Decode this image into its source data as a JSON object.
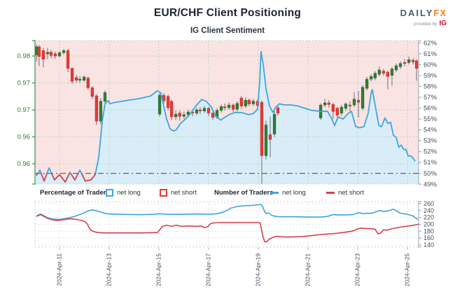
{
  "header": {
    "title": "EUR/CHF Client Positioning",
    "subtitle": "IG Client Sentiment"
  },
  "brand": {
    "daily": "DAILY",
    "fx": "FX",
    "provided_by": "provided by",
    "ig": "IG"
  },
  "legend": {
    "pct_group": "Percentage of Traders",
    "num_group": "Number of Traders",
    "pct_net_long": "net long",
    "pct_net_short": "net short",
    "num_net_long": "net long",
    "num_net_short": "net short"
  },
  "colors": {
    "candle_up": "#2e7d32",
    "candle_up_stroke": "#256428",
    "candle_down": "#e53935",
    "candle_down_stroke": "#c62828",
    "wick": "#6b7077",
    "sentiment_blue": "#3fa5de",
    "sentiment_red": "#d24b55",
    "area_above": "#f9e3e3",
    "area_below": "#d9edf8",
    "grid_green": "#aed3ae",
    "axis_green": "#3f9142",
    "label_green": "#2e7d32",
    "axis_gray": "#a8b0b8",
    "label_gray": "#454f5b",
    "grid_gray": "#d9dde2",
    "border_gray": "#c9ced4",
    "midline": "#5c6168",
    "num_long_line": "#3fa5de",
    "num_short_line": "#d6404a"
  },
  "chart_data": {
    "type": "candlestick+line",
    "title": "EUR/CHF Client Positioning",
    "subtitle": "IG Client Sentiment",
    "x_axis": {
      "unit": "days since 2024-Apr-10 00:00",
      "ticks": [
        {
          "d": 1,
          "label": "2024-Apr-11"
        },
        {
          "d": 3,
          "label": "2024-Apr-13"
        },
        {
          "d": 5,
          "label": "2024-Apr-15"
        },
        {
          "d": 7,
          "label": "2024-Apr-17"
        },
        {
          "d": 9,
          "label": "2024-Apr-19"
        },
        {
          "d": 11,
          "label": "2024-Apr-21"
        },
        {
          "d": 13,
          "label": "2024-Apr-23"
        },
        {
          "d": 15,
          "label": "2024-Apr-25"
        }
      ]
    },
    "price_axis": {
      "labels": [
        {
          "value": 0.98,
          "text": "0.98"
        },
        {
          "value": 0.975,
          "text": "0.97"
        },
        {
          "value": 0.97,
          "text": "0.97"
        },
        {
          "value": 0.965,
          "text": "0.96"
        },
        {
          "value": 0.96,
          "text": "0.96"
        }
      ]
    },
    "pct_axis": {
      "min": 49,
      "max": 62,
      "step": 1,
      "suffix": "%",
      "midline": 50
    },
    "count_axis": {
      "min": 140,
      "max": 260,
      "step": 20
    },
    "candles": [
      [
        0.08,
        0.9802,
        0.9821,
        0.979,
        0.9817
      ],
      [
        0.18,
        0.9817,
        0.982,
        0.9781,
        0.9799
      ],
      [
        0.35,
        0.981,
        0.9815,
        0.9779,
        0.9794
      ],
      [
        0.52,
        0.9804,
        0.9815,
        0.9794,
        0.9807
      ],
      [
        0.66,
        0.9807,
        0.9811,
        0.9796,
        0.9801
      ],
      [
        0.83,
        0.9804,
        0.9808,
        0.9795,
        0.98
      ],
      [
        1.0,
        0.98,
        0.9809,
        0.9797,
        0.9806
      ],
      [
        1.17,
        0.9806,
        0.9813,
        0.9803,
        0.981
      ],
      [
        1.34,
        0.981,
        0.9813,
        0.977,
        0.9777
      ],
      [
        1.51,
        0.9777,
        0.9779,
        0.9748,
        0.9753
      ],
      [
        1.68,
        0.976,
        0.9765,
        0.975,
        0.9755
      ],
      [
        1.82,
        0.9755,
        0.9763,
        0.975,
        0.9757
      ],
      [
        1.99,
        0.9755,
        0.9764,
        0.9752,
        0.9761
      ],
      [
        2.15,
        0.9759,
        0.9762,
        0.9738,
        0.9741
      ],
      [
        2.32,
        0.9741,
        0.9744,
        0.972,
        0.9725
      ],
      [
        2.49,
        0.9726,
        0.9729,
        0.9672,
        0.9679
      ],
      [
        2.66,
        0.9679,
        0.9722,
        0.9673,
        0.9716
      ],
      [
        2.83,
        0.9716,
        0.9736,
        0.9706,
        0.9732
      ],
      [
        5.03,
        0.9692,
        0.9731,
        0.9688,
        0.9727
      ],
      [
        5.2,
        0.9727,
        0.9731,
        0.9712,
        0.9717
      ],
      [
        5.37,
        0.9725,
        0.9728,
        0.9699,
        0.9704
      ],
      [
        5.51,
        0.9716,
        0.9719,
        0.9681,
        0.9687
      ],
      [
        5.68,
        0.9687,
        0.9699,
        0.9681,
        0.9692
      ],
      [
        5.84,
        0.9694,
        0.9699,
        0.968,
        0.9688
      ],
      [
        6.01,
        0.9688,
        0.9697,
        0.9683,
        0.9691
      ],
      [
        6.18,
        0.9691,
        0.97,
        0.9686,
        0.9696
      ],
      [
        6.35,
        0.9696,
        0.9701,
        0.9688,
        0.9694
      ],
      [
        6.52,
        0.9694,
        0.9704,
        0.969,
        0.97
      ],
      [
        6.66,
        0.97,
        0.9705,
        0.9692,
        0.9698
      ],
      [
        6.83,
        0.9698,
        0.9707,
        0.9694,
        0.9703
      ],
      [
        7.0,
        0.9703,
        0.9706,
        0.9689,
        0.9694
      ],
      [
        7.17,
        0.9694,
        0.9697,
        0.9681,
        0.9686
      ],
      [
        7.34,
        0.9686,
        0.9703,
        0.9683,
        0.9699
      ],
      [
        7.51,
        0.9699,
        0.971,
        0.9695,
        0.9706
      ],
      [
        7.65,
        0.9706,
        0.9712,
        0.9699,
        0.9704
      ],
      [
        7.82,
        0.9704,
        0.9714,
        0.97,
        0.9709
      ],
      [
        7.99,
        0.9709,
        0.9712,
        0.9696,
        0.9701
      ],
      [
        8.15,
        0.9701,
        0.9716,
        0.9697,
        0.9712
      ],
      [
        8.32,
        0.9722,
        0.9726,
        0.9702,
        0.9707
      ],
      [
        8.49,
        0.9707,
        0.9723,
        0.9703,
        0.9718
      ],
      [
        8.63,
        0.9718,
        0.9721,
        0.9706,
        0.9711
      ],
      [
        8.8,
        0.9711,
        0.972,
        0.9707,
        0.9716
      ],
      [
        8.97,
        0.9716,
        0.9719,
        0.9703,
        0.9708
      ],
      [
        9.14,
        0.9714,
        0.9717,
        0.9563,
        0.9615
      ],
      [
        9.31,
        0.9615,
        0.968,
        0.9608,
        0.9672
      ],
      [
        9.48,
        0.9654,
        0.9688,
        0.9612,
        0.9645
      ],
      [
        9.65,
        0.9655,
        0.9698,
        0.965,
        0.9692
      ],
      [
        9.79,
        0.9704,
        0.9708,
        0.9689,
        0.9694
      ],
      [
        11.51,
        0.9685,
        0.9712,
        0.9681,
        0.9709
      ],
      [
        11.68,
        0.9709,
        0.972,
        0.9705,
        0.9713
      ],
      [
        11.84,
        0.9713,
        0.9718,
        0.9704,
        0.971
      ],
      [
        12.01,
        0.971,
        0.9713,
        0.9683,
        0.9697
      ],
      [
        12.18,
        0.9703,
        0.9706,
        0.968,
        0.969
      ],
      [
        12.35,
        0.9694,
        0.9709,
        0.9689,
        0.9705
      ],
      [
        12.52,
        0.9703,
        0.9714,
        0.9698,
        0.9711
      ],
      [
        12.69,
        0.9709,
        0.9716,
        0.9697,
        0.9707
      ],
      [
        12.86,
        0.9709,
        0.9733,
        0.9705,
        0.972
      ],
      [
        13.03,
        0.9718,
        0.9735,
        0.9686,
        0.9714
      ],
      [
        13.2,
        0.9703,
        0.9746,
        0.9699,
        0.9742
      ],
      [
        13.37,
        0.974,
        0.9761,
        0.9736,
        0.9757
      ],
      [
        13.54,
        0.9757,
        0.9766,
        0.9753,
        0.9762
      ],
      [
        13.7,
        0.9759,
        0.9772,
        0.9755,
        0.9768
      ],
      [
        13.87,
        0.9766,
        0.978,
        0.9762,
        0.9774
      ],
      [
        14.04,
        0.9772,
        0.9776,
        0.9763,
        0.9768
      ],
      [
        14.21,
        0.977,
        0.9773,
        0.9738,
        0.9762
      ],
      [
        14.38,
        0.9764,
        0.978,
        0.9745,
        0.9776
      ],
      [
        14.55,
        0.9774,
        0.9786,
        0.977,
        0.9782
      ],
      [
        14.72,
        0.978,
        0.979,
        0.9776,
        0.9786
      ],
      [
        14.89,
        0.9788,
        0.9794,
        0.9781,
        0.9786
      ],
      [
        15.06,
        0.9788,
        0.9799,
        0.9784,
        0.9793
      ],
      [
        15.23,
        0.9792,
        0.9796,
        0.9784,
        0.9789
      ],
      [
        15.37,
        0.9791,
        0.9794,
        0.9754,
        0.9777
      ]
    ],
    "pct_net_long": [
      [
        0.07,
        49.8
      ],
      [
        0.21,
        50.3
      ],
      [
        0.38,
        49.3
      ],
      [
        0.58,
        50.5
      ],
      [
        0.8,
        49.4
      ],
      [
        1.0,
        49.9
      ],
      [
        1.23,
        49.2
      ],
      [
        1.42,
        50.1
      ],
      [
        1.62,
        49.4
      ],
      [
        1.82,
        50.3
      ],
      [
        2.04,
        49.3
      ],
      [
        2.27,
        49.4
      ],
      [
        2.44,
        49.9
      ],
      [
        2.58,
        51.5
      ],
      [
        2.72,
        54.8
      ],
      [
        2.83,
        56.4
      ],
      [
        2.97,
        56.7
      ],
      [
        3.03,
        56.4
      ],
      [
        3.17,
        56.5
      ],
      [
        3.68,
        56.7
      ],
      [
        4.24,
        56.9
      ],
      [
        4.66,
        57.1
      ],
      [
        4.94,
        57.6
      ],
      [
        5.08,
        57.4
      ],
      [
        5.31,
        55.0
      ],
      [
        5.45,
        54.1
      ],
      [
        5.59,
        53.9
      ],
      [
        5.7,
        54.0
      ],
      [
        5.87,
        54.6
      ],
      [
        6.07,
        55.0
      ],
      [
        6.27,
        55.5
      ],
      [
        6.49,
        56.2
      ],
      [
        6.72,
        56.8
      ],
      [
        6.92,
        56.6
      ],
      [
        7.11,
        56.1
      ],
      [
        7.28,
        55.3
      ],
      [
        7.48,
        54.9
      ],
      [
        7.62,
        55.1
      ],
      [
        7.82,
        55.4
      ],
      [
        8.04,
        55.6
      ],
      [
        8.32,
        55.6
      ],
      [
        8.61,
        55.4
      ],
      [
        8.8,
        55.5
      ],
      [
        8.97,
        55.9
      ],
      [
        9.06,
        58.5
      ],
      [
        9.11,
        61.2
      ],
      [
        9.2,
        60.0
      ],
      [
        9.31,
        57.8
      ],
      [
        9.45,
        56.2
      ],
      [
        9.59,
        55.6
      ],
      [
        9.7,
        56.1
      ],
      [
        9.85,
        56.4
      ],
      [
        10.01,
        56.3
      ],
      [
        10.3,
        56.3
      ],
      [
        10.58,
        56.2
      ],
      [
        10.86,
        56.0
      ],
      [
        11.14,
        55.8
      ],
      [
        11.51,
        55.7
      ],
      [
        11.79,
        55.7
      ],
      [
        11.96,
        55.0
      ],
      [
        12.07,
        54.4
      ],
      [
        12.21,
        55.2
      ],
      [
        12.41,
        55.0
      ],
      [
        12.61,
        55.5
      ],
      [
        12.75,
        55.7
      ],
      [
        12.92,
        54.3
      ],
      [
        13.08,
        54.2
      ],
      [
        13.25,
        54.3
      ],
      [
        13.42,
        55.5
      ],
      [
        13.54,
        57.4
      ],
      [
        13.59,
        57.7
      ],
      [
        13.7,
        56.3
      ],
      [
        13.85,
        54.4
      ],
      [
        13.96,
        54.3
      ],
      [
        14.1,
        55.1
      ],
      [
        14.21,
        54.6
      ],
      [
        14.32,
        54.7
      ],
      [
        14.44,
        53.5
      ],
      [
        14.55,
        53.3
      ],
      [
        14.66,
        52.4
      ],
      [
        14.75,
        52.6
      ],
      [
        14.86,
        52.2
      ],
      [
        14.94,
        52.2
      ],
      [
        15.03,
        51.6
      ],
      [
        15.14,
        51.6
      ],
      [
        15.23,
        51.4
      ],
      [
        15.31,
        51.1
      ]
    ],
    "num_net_long": [
      [
        0.07,
        224
      ],
      [
        0.24,
        230
      ],
      [
        0.52,
        219
      ],
      [
        0.72,
        215
      ],
      [
        1.0,
        214
      ],
      [
        1.28,
        217
      ],
      [
        1.56,
        222
      ],
      [
        1.85,
        229
      ],
      [
        2.13,
        238
      ],
      [
        2.32,
        242
      ],
      [
        2.55,
        238
      ],
      [
        2.77,
        233
      ],
      [
        2.97,
        230
      ],
      [
        3.39,
        229
      ],
      [
        4.24,
        228
      ],
      [
        4.8,
        229
      ],
      [
        5.03,
        231
      ],
      [
        5.31,
        229
      ],
      [
        5.87,
        229
      ],
      [
        6.49,
        230
      ],
      [
        7.06,
        229
      ],
      [
        7.34,
        231
      ],
      [
        7.62,
        236
      ],
      [
        7.76,
        241
      ],
      [
        7.9,
        247
      ],
      [
        8.18,
        252
      ],
      [
        8.46,
        254
      ],
      [
        8.75,
        255
      ],
      [
        9.03,
        257
      ],
      [
        9.11,
        258
      ],
      [
        9.17,
        252
      ],
      [
        9.25,
        238
      ],
      [
        9.31,
        231
      ],
      [
        9.42,
        233
      ],
      [
        9.53,
        226
      ],
      [
        9.7,
        223
      ],
      [
        9.87,
        222
      ],
      [
        10.44,
        222
      ],
      [
        11.0,
        221
      ],
      [
        11.51,
        221
      ],
      [
        11.79,
        223
      ],
      [
        12.01,
        228
      ],
      [
        12.21,
        227
      ],
      [
        12.52,
        227
      ],
      [
        12.83,
        228
      ],
      [
        12.95,
        232
      ],
      [
        13.08,
        234
      ],
      [
        13.2,
        231
      ],
      [
        13.37,
        232
      ],
      [
        13.54,
        232
      ],
      [
        13.7,
        235
      ],
      [
        13.9,
        240
      ],
      [
        14.04,
        237
      ],
      [
        14.24,
        239
      ],
      [
        14.44,
        244
      ],
      [
        14.58,
        238
      ],
      [
        14.72,
        232
      ],
      [
        14.89,
        230
      ],
      [
        15.06,
        228
      ],
      [
        15.23,
        224
      ],
      [
        15.34,
        218
      ],
      [
        15.42,
        214
      ]
    ],
    "num_net_short": [
      [
        0.07,
        223
      ],
      [
        0.24,
        228
      ],
      [
        0.52,
        217
      ],
      [
        0.72,
        213
      ],
      [
        0.92,
        211
      ],
      [
        1.14,
        213
      ],
      [
        1.42,
        216
      ],
      [
        1.7,
        214
      ],
      [
        1.9,
        211
      ],
      [
        2.04,
        207
      ],
      [
        2.13,
        200
      ],
      [
        2.18,
        191
      ],
      [
        2.27,
        182
      ],
      [
        2.41,
        178
      ],
      [
        2.55,
        176
      ],
      [
        2.83,
        175
      ],
      [
        3.39,
        175
      ],
      [
        4.24,
        175
      ],
      [
        4.94,
        176
      ],
      [
        5.06,
        186
      ],
      [
        5.14,
        194
      ],
      [
        5.31,
        197
      ],
      [
        5.51,
        194
      ],
      [
        5.7,
        197
      ],
      [
        5.93,
        194
      ],
      [
        6.21,
        195
      ],
      [
        6.49,
        194
      ],
      [
        6.72,
        195
      ],
      [
        6.83,
        190
      ],
      [
        6.97,
        193
      ],
      [
        7.06,
        201
      ],
      [
        7.2,
        204
      ],
      [
        7.48,
        205
      ],
      [
        8.04,
        205
      ],
      [
        8.61,
        205
      ],
      [
        8.97,
        205
      ],
      [
        9.08,
        204
      ],
      [
        9.17,
        170
      ],
      [
        9.25,
        150
      ],
      [
        9.31,
        148
      ],
      [
        9.45,
        157
      ],
      [
        9.59,
        162
      ],
      [
        9.73,
        165
      ],
      [
        9.87,
        164
      ],
      [
        10.15,
        163
      ],
      [
        10.72,
        164
      ],
      [
        11.14,
        167
      ],
      [
        11.51,
        170
      ],
      [
        11.84,
        172
      ],
      [
        12.18,
        174
      ],
      [
        12.52,
        177
      ],
      [
        12.83,
        181
      ],
      [
        12.98,
        186
      ],
      [
        13.14,
        189
      ],
      [
        13.31,
        188
      ],
      [
        13.54,
        187
      ],
      [
        13.7,
        186
      ],
      [
        13.82,
        172
      ],
      [
        13.93,
        175
      ],
      [
        14.04,
        184
      ],
      [
        14.18,
        183
      ],
      [
        14.38,
        187
      ],
      [
        14.6,
        190
      ],
      [
        14.83,
        193
      ],
      [
        15.06,
        195
      ],
      [
        15.23,
        197
      ],
      [
        15.37,
        199
      ],
      [
        15.45,
        200
      ]
    ]
  }
}
